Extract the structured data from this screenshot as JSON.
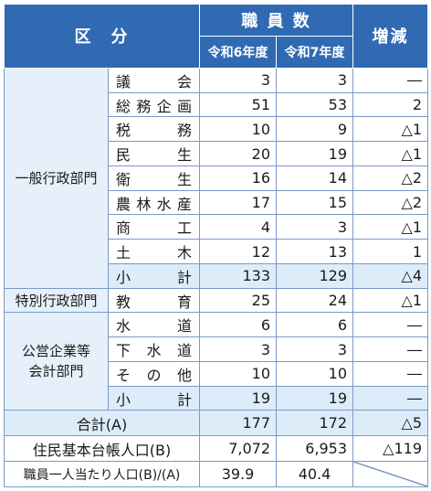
{
  "header": {
    "category": "区　分",
    "staff": "職 員 数",
    "year_prev": "令和6年度",
    "year_curr": "令和7年度",
    "change": "増減"
  },
  "groups": {
    "general": "一般行政部門",
    "special": "特別行政部門",
    "enterprise": "公営企業等会計部門"
  },
  "rows": [
    {
      "label": "議会",
      "prev": "3",
      "curr": "3",
      "change": "―"
    },
    {
      "label": "総務企画",
      "prev": "51",
      "curr": "53",
      "change": "2"
    },
    {
      "label": "税務",
      "prev": "10",
      "curr": "9",
      "change": "△1"
    },
    {
      "label": "民生",
      "prev": "20",
      "curr": "19",
      "change": "△1"
    },
    {
      "label": "衛生",
      "prev": "16",
      "curr": "14",
      "change": "△2"
    },
    {
      "label": "農林水産",
      "prev": "17",
      "curr": "15",
      "change": "△2"
    },
    {
      "label": "商工",
      "prev": "4",
      "curr": "3",
      "change": "△1"
    },
    {
      "label": "土木",
      "prev": "12",
      "curr": "13",
      "change": "1"
    },
    {
      "label": "小計",
      "prev": "133",
      "curr": "129",
      "change": "△4"
    },
    {
      "label": "教育",
      "prev": "25",
      "curr": "24",
      "change": "△1"
    },
    {
      "label": "水道",
      "prev": "6",
      "curr": "6",
      "change": "―"
    },
    {
      "label": "下水道",
      "prev": "3",
      "curr": "3",
      "change": "―"
    },
    {
      "label": "その他",
      "prev": "10",
      "curr": "10",
      "change": "―"
    },
    {
      "label": "小計",
      "prev": "19",
      "curr": "19",
      "change": "―"
    }
  ],
  "total": {
    "label": "合計(A)",
    "prev": "177",
    "curr": "172",
    "change": "△5"
  },
  "population": {
    "label": "住民基本台帳人口(B)",
    "prev": "7,072",
    "curr": "6,953",
    "change": "△119"
  },
  "per_staff": {
    "label": "職員一人当たり人口(B)/(A)",
    "prev": "39.9",
    "curr": "40.4"
  }
}
